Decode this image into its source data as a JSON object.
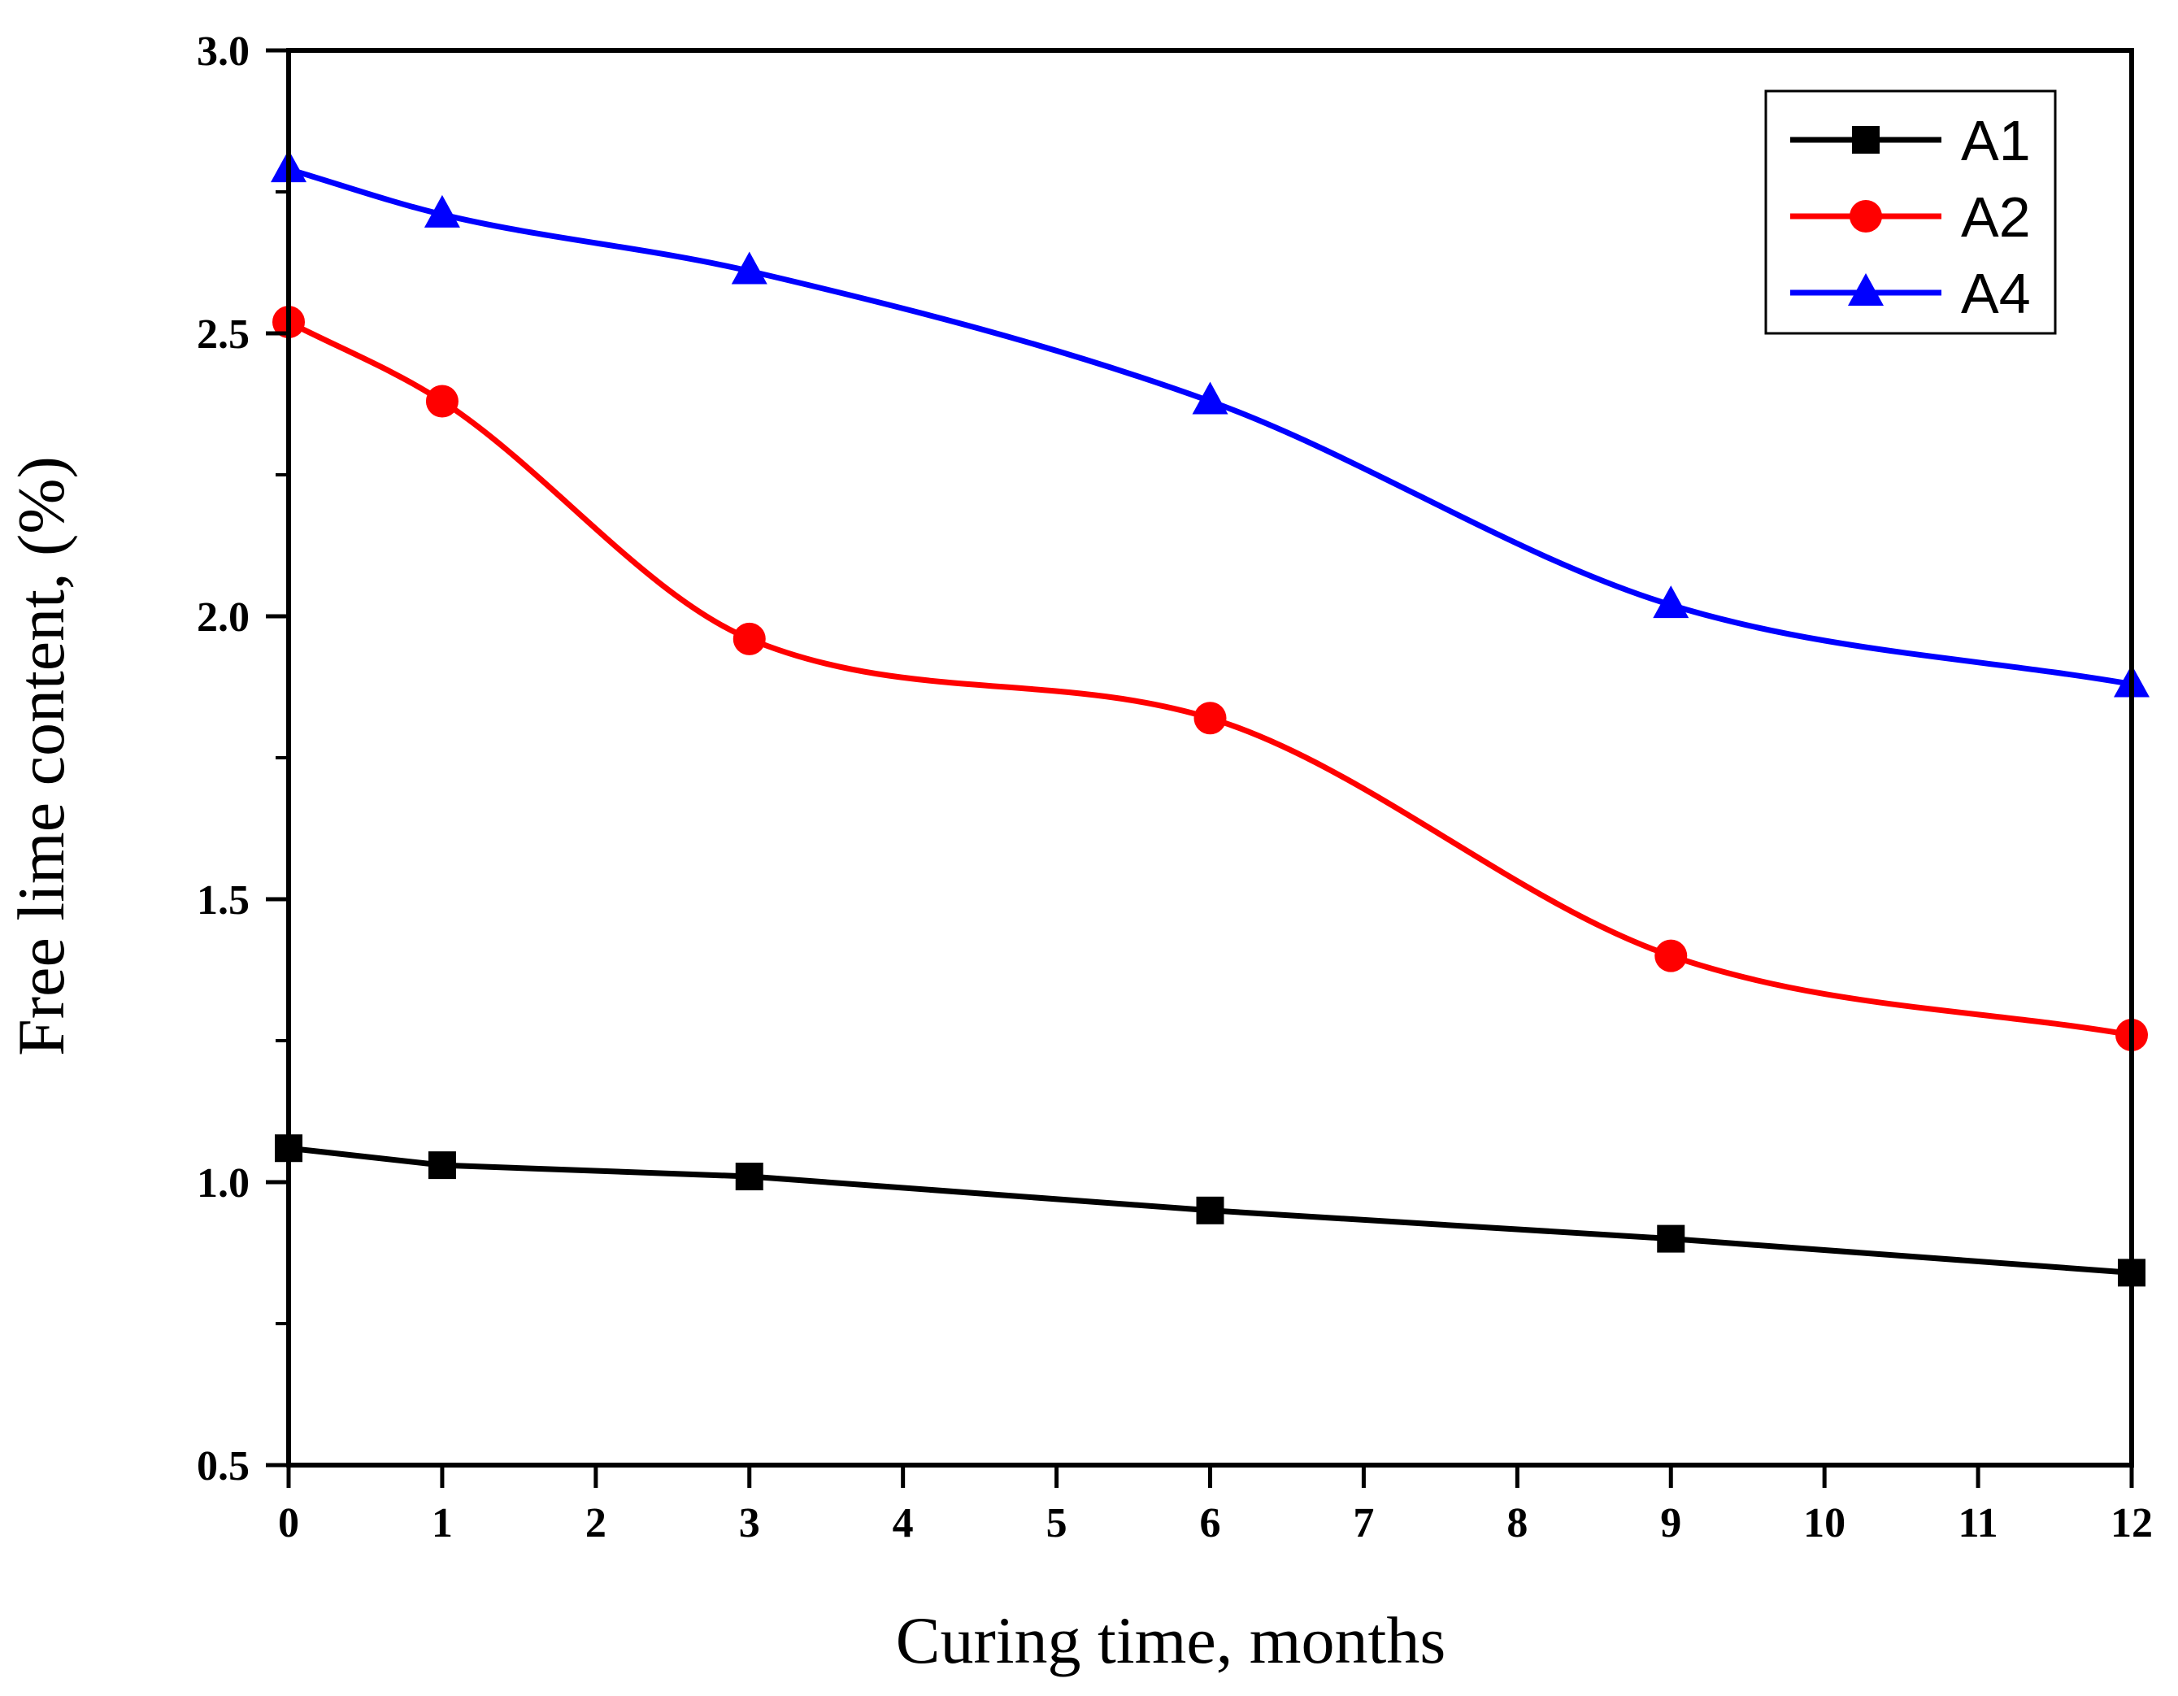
{
  "chart_data": {
    "type": "line",
    "title": "",
    "xlabel": "Curing time, months",
    "ylabel": "Free lime content, (%)",
    "xlim": [
      0,
      12
    ],
    "ylim": [
      0.5,
      3.0
    ],
    "x_ticks": [
      "0",
      "1",
      "2",
      "3",
      "4",
      "5",
      "6",
      "7",
      "8",
      "9",
      "10",
      "11",
      "12"
    ],
    "y_ticks": [
      "0.5",
      "1.0",
      "1.5",
      "2.0",
      "2.5",
      "3.0"
    ],
    "legend_position": "top-right",
    "grid": false,
    "x": [
      0,
      1,
      3,
      6,
      9,
      12
    ],
    "series": [
      {
        "name": "A1",
        "color": "#000000",
        "marker": "square",
        "values": [
          1.06,
          1.03,
          1.01,
          0.95,
          0.9,
          0.84
        ]
      },
      {
        "name": "A2",
        "color": "#ff0000",
        "marker": "circle",
        "values": [
          2.52,
          2.38,
          1.96,
          1.82,
          1.4,
          1.26
        ]
      },
      {
        "name": "A4",
        "color": "#0000ff",
        "marker": "triangle",
        "values": [
          2.79,
          2.71,
          2.61,
          2.38,
          2.02,
          1.88
        ]
      }
    ]
  }
}
